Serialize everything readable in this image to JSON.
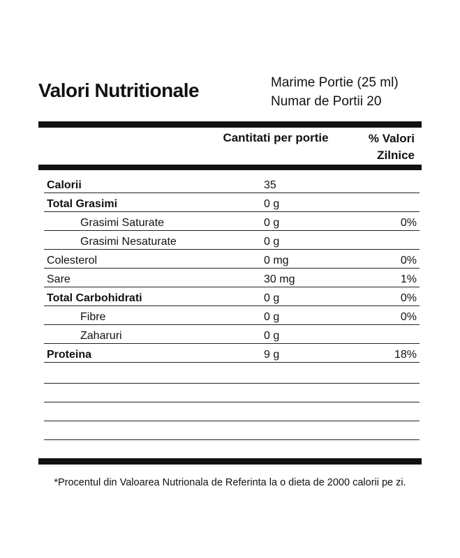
{
  "header": {
    "title": "Valori Nutritionale",
    "serving_size": "Marime Portie (25 ml)",
    "servings": "Numar de Portii 20"
  },
  "columns": {
    "amount": "Cantitati per portie",
    "daily_value": "% Valori Zilnice"
  },
  "rows": [
    {
      "name": "Calorii",
      "amount": "35"
    },
    {
      "name": "Total Grasimi",
      "amount": "0 g"
    },
    {
      "name": "Grasimi Saturate",
      "amount": "0 g",
      "percent": "0%"
    },
    {
      "name": "Grasimi Nesaturate",
      "amount": "0 g"
    },
    {
      "name": "Colesterol",
      "amount": "0 mg",
      "percent": "0%"
    },
    {
      "name": "Sare",
      "amount": "30 mg",
      "percent": "1%"
    },
    {
      "name": "Total Carbohidrati",
      "amount": "0 g",
      "percent": "0%"
    },
    {
      "name": "Fibre",
      "amount": "0 g",
      "percent": "0%"
    },
    {
      "name": "Zaharuri",
      "amount": "0 g"
    },
    {
      "name": "Proteina",
      "amount": "9 g",
      "percent": "18%"
    }
  ],
  "footnote": "*Procentul din Valoarea Nutrionala de Referinta la o dieta de 2000 calorii pe zi."
}
